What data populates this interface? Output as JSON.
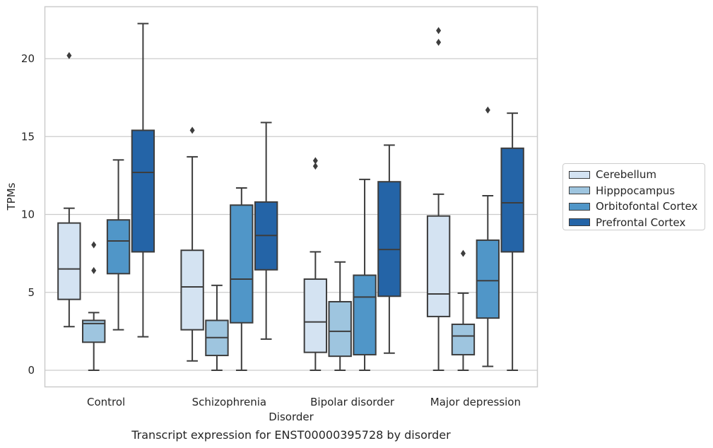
{
  "caption": "Transcript expression for ENST00000395728 by disorder",
  "chart_data": {
    "type": "box",
    "xlabel": "Disorder",
    "ylabel": "TPMs",
    "ylim": [
      -1.1,
      23.3
    ],
    "yticks": [
      0,
      5,
      10,
      15,
      20
    ],
    "grid": "horizontal",
    "legend_position": "right",
    "categories": [
      "Control",
      "Schizophrenia",
      "Bipolar disorder",
      "Major depression"
    ],
    "series": [
      {
        "name": "Cerebellum",
        "color": "#d4e3f2",
        "boxes": [
          {
            "whislo": 2.8,
            "q1": 4.55,
            "med": 6.5,
            "q3": 9.45,
            "whishi": 10.4,
            "fliers": [
              20.2
            ]
          },
          {
            "whislo": 0.6,
            "q1": 2.6,
            "med": 5.35,
            "q3": 7.7,
            "whishi": 13.7,
            "fliers": [
              15.4
            ]
          },
          {
            "whislo": 0.0,
            "q1": 1.15,
            "med": 3.1,
            "q3": 5.85,
            "whishi": 7.6,
            "fliers": [
              13.1,
              13.45
            ]
          },
          {
            "whislo": 0.0,
            "q1": 3.45,
            "med": 4.9,
            "q3": 9.9,
            "whishi": 11.3,
            "fliers": [
              21.05,
              21.8
            ]
          }
        ]
      },
      {
        "name": "Hipppocampus",
        "color": "#9ec5df",
        "boxes": [
          {
            "whislo": 0.0,
            "q1": 1.8,
            "med": 3.0,
            "q3": 3.2,
            "whishi": 3.7,
            "fliers": [
              6.4,
              8.05
            ]
          },
          {
            "whislo": 0.0,
            "q1": 0.95,
            "med": 2.1,
            "q3": 3.2,
            "whishi": 5.45,
            "fliers": []
          },
          {
            "whislo": 0.0,
            "q1": 0.9,
            "med": 2.5,
            "q3": 4.4,
            "whishi": 6.95,
            "fliers": []
          },
          {
            "whislo": 0.0,
            "q1": 1.0,
            "med": 2.2,
            "q3": 2.95,
            "whishi": 4.95,
            "fliers": [
              7.5
            ]
          }
        ]
      },
      {
        "name": "Orbitofontal Cortex",
        "color": "#5096c8",
        "boxes": [
          {
            "whislo": 2.6,
            "q1": 6.2,
            "med": 8.3,
            "q3": 9.65,
            "whishi": 13.5,
            "fliers": []
          },
          {
            "whislo": 0.0,
            "q1": 3.05,
            "med": 5.85,
            "q3": 10.6,
            "whishi": 11.7,
            "fliers": []
          },
          {
            "whislo": 0.0,
            "q1": 1.0,
            "med": 4.7,
            "q3": 6.1,
            "whishi": 12.25,
            "fliers": []
          },
          {
            "whislo": 0.25,
            "q1": 3.35,
            "med": 5.75,
            "q3": 8.35,
            "whishi": 11.2,
            "fliers": [
              16.7
            ]
          }
        ]
      },
      {
        "name": "Prefrontal Cortex",
        "color": "#2464a7",
        "boxes": [
          {
            "whislo": 2.15,
            "q1": 7.6,
            "med": 12.7,
            "q3": 15.4,
            "whishi": 22.25,
            "fliers": []
          },
          {
            "whislo": 2.0,
            "q1": 6.45,
            "med": 8.65,
            "q3": 10.8,
            "whishi": 15.9,
            "fliers": []
          },
          {
            "whislo": 1.1,
            "q1": 4.75,
            "med": 7.75,
            "q3": 12.1,
            "whishi": 14.45,
            "fliers": []
          },
          {
            "whislo": 0.0,
            "q1": 7.6,
            "med": 10.75,
            "q3": 14.25,
            "whishi": 16.5,
            "fliers": []
          }
        ]
      }
    ]
  }
}
